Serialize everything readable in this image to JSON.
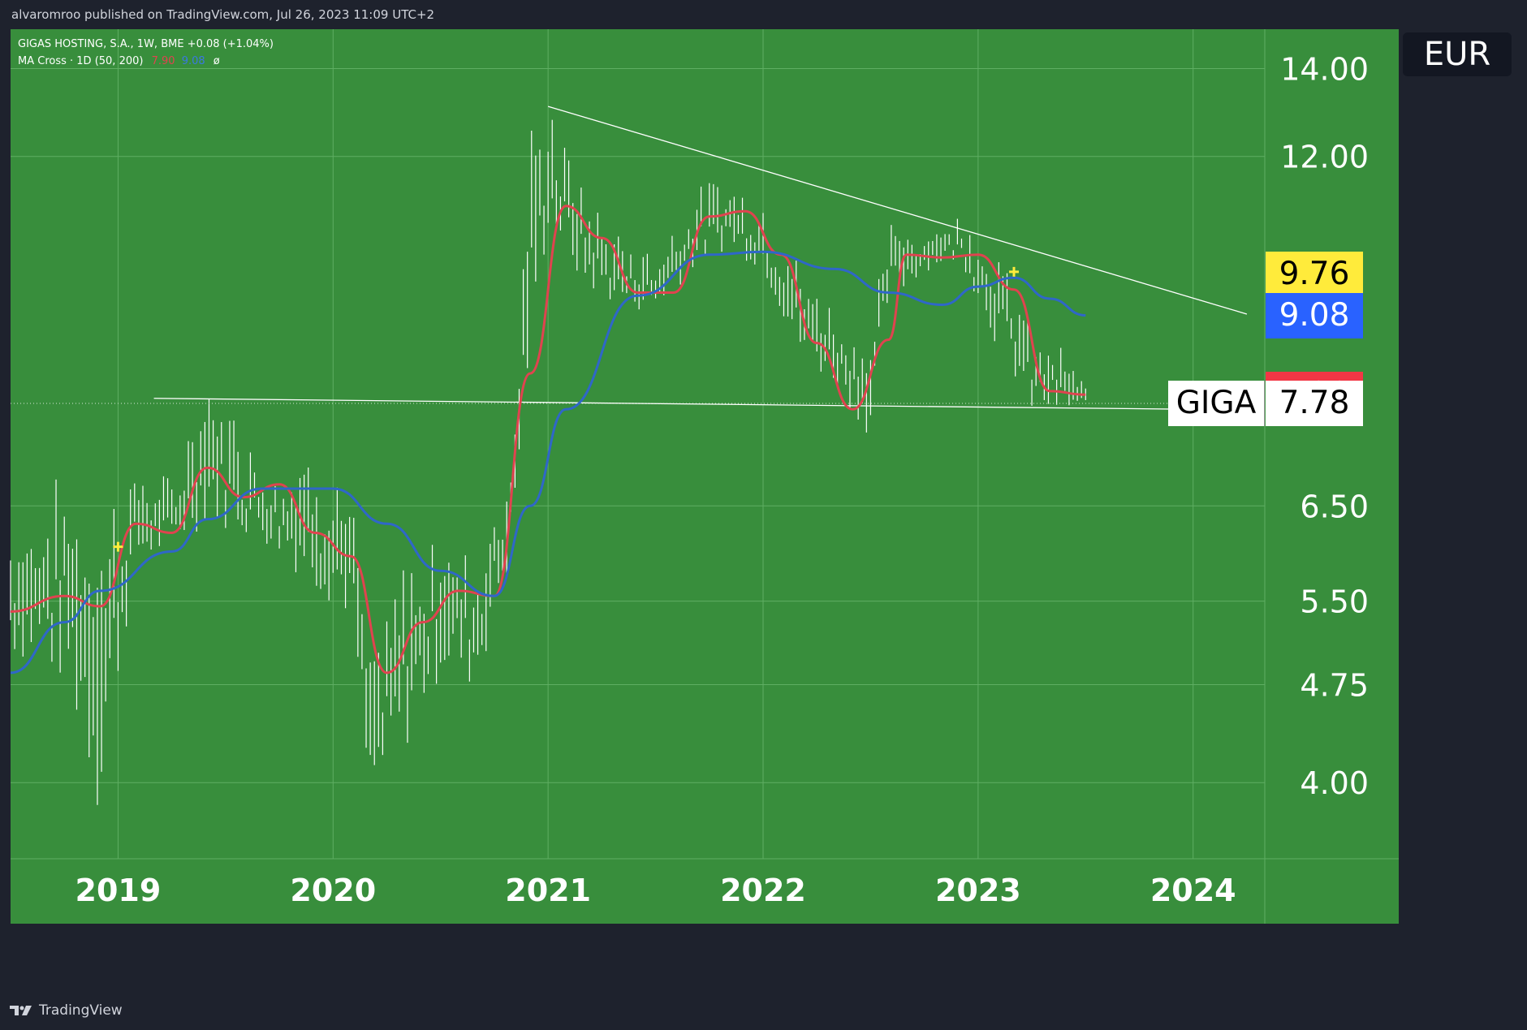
{
  "header": {
    "publisher_text": "alvaromroo published on TradingView.com, Jul 26, 2023 11:09 UTC+2"
  },
  "legend": {
    "title_line": "GIGAS HOSTING, S.A., 1W, BME  +0.08 (+1.04%)",
    "indicator_label": "MA Cross · 1D (50, 200)",
    "ma50_value": "7.90",
    "ma200_value": "9.08",
    "visibility_glyph": "ø"
  },
  "currency": "EUR",
  "footer": {
    "brand": "TradingView"
  },
  "colors": {
    "plot_bg": "#388e3c",
    "grid": "#5fae63",
    "candles": "#ffffff",
    "ma_fast": "#e0434f",
    "ma_slow": "#2f67c8",
    "cross_marker": "#ffeb3b",
    "frame": "#1e222d"
  },
  "chart_data": {
    "type": "line",
    "title": "GIGAS HOSTING, S.A., 1W, BME",
    "scale": "log",
    "x_ticks": [
      "2019",
      "2020",
      "2021",
      "2022",
      "2023",
      "2024"
    ],
    "y_ticks": [
      "4.00",
      "4.75",
      "5.50",
      "6.50",
      "12.00",
      "14.00"
    ],
    "y_range": [
      3.5,
      15
    ],
    "x_range": [
      "2018-07",
      "2024-05"
    ],
    "price_labels": [
      {
        "name": "",
        "value": "9.76",
        "bg": "#ffeb3b",
        "fg": "#000000"
      },
      {
        "name": "",
        "value": "9.08",
        "bg": "#2962ff",
        "fg": "#ffffff"
      },
      {
        "name": "",
        "value": "7.90",
        "bg": "#f23645",
        "fg": "#ffffff"
      },
      {
        "name": "GIGA",
        "value": "7.78",
        "bg": "#ffffff",
        "fg": "#000000"
      }
    ],
    "series": [
      {
        "name": "MA 50",
        "color": "#e0434f",
        "points": [
          [
            "2018-07",
            5.4
          ],
          [
            "2018-10",
            5.55
          ],
          [
            "2018-12",
            5.45
          ],
          [
            "2019-02",
            6.3
          ],
          [
            "2019-04",
            6.2
          ],
          [
            "2019-06",
            6.95
          ],
          [
            "2019-08",
            6.6
          ],
          [
            "2019-10",
            6.75
          ],
          [
            "2019-12",
            6.2
          ],
          [
            "2020-02",
            5.95
          ],
          [
            "2020-04",
            4.85
          ],
          [
            "2020-06",
            5.3
          ],
          [
            "2020-08",
            5.6
          ],
          [
            "2020-10",
            5.55
          ],
          [
            "2020-12",
            8.2
          ],
          [
            "2021-02",
            11.0
          ],
          [
            "2021-04",
            10.4
          ],
          [
            "2021-06",
            9.45
          ],
          [
            "2021-08",
            9.45
          ],
          [
            "2021-10",
            10.8
          ],
          [
            "2021-12",
            10.9
          ],
          [
            "2022-02",
            10.1
          ],
          [
            "2022-04",
            8.65
          ],
          [
            "2022-06",
            7.7
          ],
          [
            "2022-08",
            8.7
          ],
          [
            "2022-09",
            10.1
          ],
          [
            "2022-11",
            10.05
          ],
          [
            "2023-01",
            10.1
          ],
          [
            "2023-03",
            9.5
          ],
          [
            "2023-05",
            7.95
          ],
          [
            "2023-07",
            7.9
          ]
        ]
      },
      {
        "name": "MA 200",
        "color": "#2f67c8",
        "points": [
          [
            "2018-07",
            4.85
          ],
          [
            "2018-10",
            5.3
          ],
          [
            "2018-12",
            5.6
          ],
          [
            "2019-04",
            6.0
          ],
          [
            "2019-06",
            6.35
          ],
          [
            "2019-09",
            6.7
          ],
          [
            "2020-01",
            6.7
          ],
          [
            "2020-04",
            6.3
          ],
          [
            "2020-07",
            5.8
          ],
          [
            "2020-10",
            5.55
          ],
          [
            "2020-12",
            6.5
          ],
          [
            "2021-02",
            7.7
          ],
          [
            "2021-06",
            9.4
          ],
          [
            "2021-10",
            10.1
          ],
          [
            "2022-01",
            10.15
          ],
          [
            "2022-05",
            9.85
          ],
          [
            "2022-08",
            9.45
          ],
          [
            "2022-11",
            9.25
          ],
          [
            "2023-01",
            9.55
          ],
          [
            "2023-03",
            9.7
          ],
          [
            "2023-05",
            9.35
          ],
          [
            "2023-07",
            9.08
          ]
        ]
      }
    ],
    "trendlines": [
      {
        "from": [
          "2021-01",
          13.1
        ],
        "to": [
          "2024-04",
          9.1
        ]
      },
      {
        "from": [
          "2019-03",
          7.85
        ],
        "to": [
          "2024-01",
          7.7
        ]
      }
    ],
    "cross_markers": [
      [
        "2019-01",
        6.05
      ],
      [
        "2023-03",
        9.8
      ]
    ],
    "price_range_by_period": [
      [
        "2018-07",
        5.0,
        6.3
      ],
      [
        "2018-10",
        4.7,
        6.9
      ],
      [
        "2018-12",
        3.65,
        6.6
      ],
      [
        "2019-02",
        5.8,
        7.0
      ],
      [
        "2019-04",
        6.0,
        6.8
      ],
      [
        "2019-06",
        6.3,
        8.2
      ],
      [
        "2019-09",
        6.1,
        7.1
      ],
      [
        "2019-12",
        5.6,
        7.2
      ],
      [
        "2020-02",
        5.3,
        6.7
      ],
      [
        "2020-03",
        3.7,
        4.9
      ],
      [
        "2020-05",
        4.2,
        5.9
      ],
      [
        "2020-07",
        4.8,
        6.3
      ],
      [
        "2020-09",
        4.7,
        6.0
      ],
      [
        "2020-11",
        5.8,
        7.4
      ],
      [
        "2020-12",
        8.2,
        12.5
      ],
      [
        "2021-01",
        10.5,
        13.2
      ],
      [
        "2021-03",
        9.5,
        11.3
      ],
      [
        "2021-05",
        9.2,
        10.4
      ],
      [
        "2021-07",
        9.1,
        10.2
      ],
      [
        "2021-09",
        9.8,
        11.3
      ],
      [
        "2021-11",
        10.2,
        11.6
      ],
      [
        "2022-01",
        9.8,
        11.0
      ],
      [
        "2022-03",
        8.4,
        10.0
      ],
      [
        "2022-05",
        8.0,
        9.2
      ],
      [
        "2022-07",
        7.3,
        8.8
      ],
      [
        "2022-08",
        9.2,
        10.7
      ],
      [
        "2022-10",
        9.8,
        10.6
      ],
      [
        "2022-12",
        10.0,
        10.8
      ],
      [
        "2023-02",
        8.6,
        10.3
      ],
      [
        "2023-04",
        7.6,
        8.9
      ],
      [
        "2023-06",
        7.6,
        8.5
      ],
      [
        "2023-07",
        7.7,
        8.0
      ]
    ]
  }
}
